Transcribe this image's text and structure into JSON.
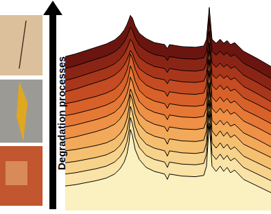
{
  "chart_data": {
    "type": "line",
    "annotations": [
      {
        "text": "Degradation processes"
      }
    ],
    "tick_labels": false,
    "xlim": [
      0,
      300
    ],
    "ylim": [
      0,
      312
    ],
    "x": [
      0,
      15,
      30,
      45,
      60,
      72,
      80,
      86,
      90,
      93,
      95,
      98,
      102,
      108,
      118,
      130,
      145,
      149,
      152,
      170,
      190,
      202,
      206,
      210,
      214,
      220,
      226,
      231,
      236,
      241,
      247,
      260,
      280,
      300
    ],
    "series": [
      {
        "color": "#fbf0c0",
        "values": [
          37,
          39,
          42,
          45,
          49,
          55,
          63,
          73,
          85,
          102,
          122,
          113,
          92,
          77,
          65,
          59,
          55,
          47,
          55,
          52,
          51,
          53,
          67,
          132,
          67,
          59,
          67,
          59,
          65,
          57,
          61,
          47,
          37,
          27
        ]
      },
      {
        "color": "#f9e3a6",
        "values": [
          55,
          57,
          60,
          63,
          67,
          73,
          81,
          91,
          103,
          120,
          140,
          131,
          110,
          95,
          83,
          77,
          73,
          65,
          73,
          70,
          69,
          71,
          85,
          150,
          85,
          77,
          85,
          77,
          83,
          75,
          79,
          65,
          55,
          45
        ]
      },
      {
        "color": "#f7d28a",
        "values": [
          72,
          74,
          77,
          80,
          84,
          90,
          98,
          108,
          120,
          137,
          157,
          148,
          127,
          112,
          100,
          94,
          90,
          82,
          90,
          87,
          86,
          88,
          102,
          167,
          102,
          94,
          102,
          94,
          100,
          92,
          96,
          82,
          72,
          62
        ]
      },
      {
        "color": "#f5bf70",
        "values": [
          90,
          92,
          95,
          98,
          102,
          108,
          116,
          126,
          138,
          155,
          175,
          166,
          145,
          130,
          118,
          112,
          108,
          100,
          108,
          105,
          104,
          106,
          120,
          185,
          120,
          112,
          120,
          112,
          118,
          110,
          114,
          100,
          90,
          80
        ]
      },
      {
        "color": "#f3a95a",
        "values": [
          108,
          111,
          115,
          119,
          124,
          130,
          138,
          148,
          158,
          170,
          183,
          176,
          160,
          146,
          136,
          130,
          126,
          119,
          126,
          123,
          122,
          124,
          136,
          193,
          136,
          129,
          136,
          129,
          134,
          127,
          130,
          117,
          107,
          96
        ]
      },
      {
        "color": "#ee9046",
        "values": [
          126,
          129,
          133,
          137,
          142,
          148,
          156,
          166,
          176,
          188,
          201,
          194,
          178,
          164,
          154,
          148,
          144,
          137,
          144,
          141,
          140,
          142,
          154,
          211,
          154,
          147,
          154,
          147,
          152,
          145,
          148,
          135,
          125,
          114
        ]
      },
      {
        "color": "#e67836",
        "values": [
          143,
          146,
          150,
          154,
          159,
          165,
          173,
          183,
          193,
          205,
          218,
          211,
          195,
          181,
          171,
          165,
          161,
          154,
          161,
          158,
          157,
          159,
          171,
          228,
          171,
          164,
          171,
          164,
          169,
          162,
          165,
          152,
          142,
          131
        ]
      },
      {
        "color": "#d8612a",
        "values": [
          161,
          164,
          168,
          172,
          177,
          183,
          191,
          201,
          211,
          223,
          236,
          229,
          213,
          199,
          189,
          183,
          179,
          172,
          179,
          176,
          175,
          177,
          189,
          246,
          189,
          182,
          189,
          182,
          187,
          180,
          183,
          170,
          160,
          149
        ]
      },
      {
        "color": "#c44b22",
        "values": [
          179,
          183,
          188,
          193,
          198,
          204,
          211,
          219,
          227,
          235,
          241,
          237,
          225,
          214,
          206,
          200,
          197,
          191,
          197,
          194,
          193,
          195,
          205,
          253,
          205,
          199,
          205,
          199,
          203,
          197,
          200,
          187,
          176,
          164
        ]
      },
      {
        "color": "#a8361b",
        "values": [
          196,
          200,
          205,
          210,
          215,
          221,
          228,
          236,
          244,
          252,
          258,
          254,
          242,
          231,
          223,
          217,
          214,
          208,
          214,
          211,
          210,
          212,
          222,
          270,
          222,
          216,
          222,
          216,
          220,
          214,
          217,
          204,
          193,
          181
        ]
      },
      {
        "color": "#8a2516",
        "values": [
          214,
          218,
          223,
          228,
          233,
          239,
          246,
          254,
          262,
          270,
          276,
          272,
          260,
          249,
          241,
          235,
          232,
          226,
          232,
          229,
          228,
          230,
          240,
          288,
          240,
          234,
          240,
          234,
          238,
          232,
          235,
          222,
          211,
          199
        ]
      },
      {
        "color": "#6b1510",
        "values": [
          232,
          236,
          241,
          246,
          251,
          257,
          264,
          272,
          280,
          288,
          294,
          290,
          278,
          267,
          259,
          253,
          250,
          244,
          250,
          247,
          246,
          248,
          258,
          306,
          258,
          252,
          258,
          252,
          256,
          250,
          253,
          240,
          229,
          217
        ]
      }
    ]
  }
}
